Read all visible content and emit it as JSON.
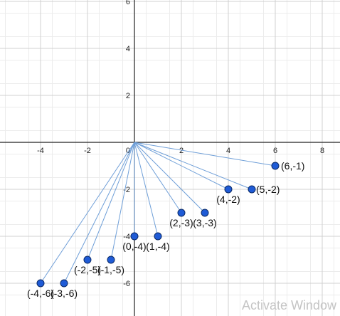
{
  "chart_data": {
    "type": "scatter",
    "xlim": [
      -5.6,
      8.9
    ],
    "ylim": [
      -7.3,
      6.1
    ],
    "grid": true,
    "x_ticks": [
      "-4",
      "-2",
      "2",
      "4",
      "6",
      "8"
    ],
    "y_ticks": [
      "6",
      "4",
      "2",
      "-2",
      "-4",
      "-6"
    ],
    "origin_label": "0",
    "segments_from_origin": true,
    "points": [
      {
        "x": 6,
        "y": -1,
        "label": "(6,-1)"
      },
      {
        "x": 5,
        "y": -2,
        "label": "(5,-2)"
      },
      {
        "x": 4,
        "y": -2,
        "label": "(4,-2)"
      },
      {
        "x": 3,
        "y": -3,
        "label": "(3,-3)"
      },
      {
        "x": 2,
        "y": -3,
        "label": "(2,-3)"
      },
      {
        "x": 1,
        "y": -4,
        "label": "(1,-4)"
      },
      {
        "x": 0,
        "y": -4,
        "label": "(0,-4)"
      },
      {
        "x": -1,
        "y": -5,
        "label": "(-1,-5)"
      },
      {
        "x": -2,
        "y": -5,
        "label": "(-2,-5)"
      },
      {
        "x": -3,
        "y": -6,
        "label": "(-3,-6)"
      },
      {
        "x": -4,
        "y": -6,
        "label": "(-4,-6)"
      }
    ],
    "colors": {
      "point": "#1f5bd6",
      "segment": "#6f9fd8",
      "grid_minor": "#ececec",
      "grid_major": "#d0d0d0",
      "axis": "#222222"
    }
  },
  "watermark": "Activate Window"
}
